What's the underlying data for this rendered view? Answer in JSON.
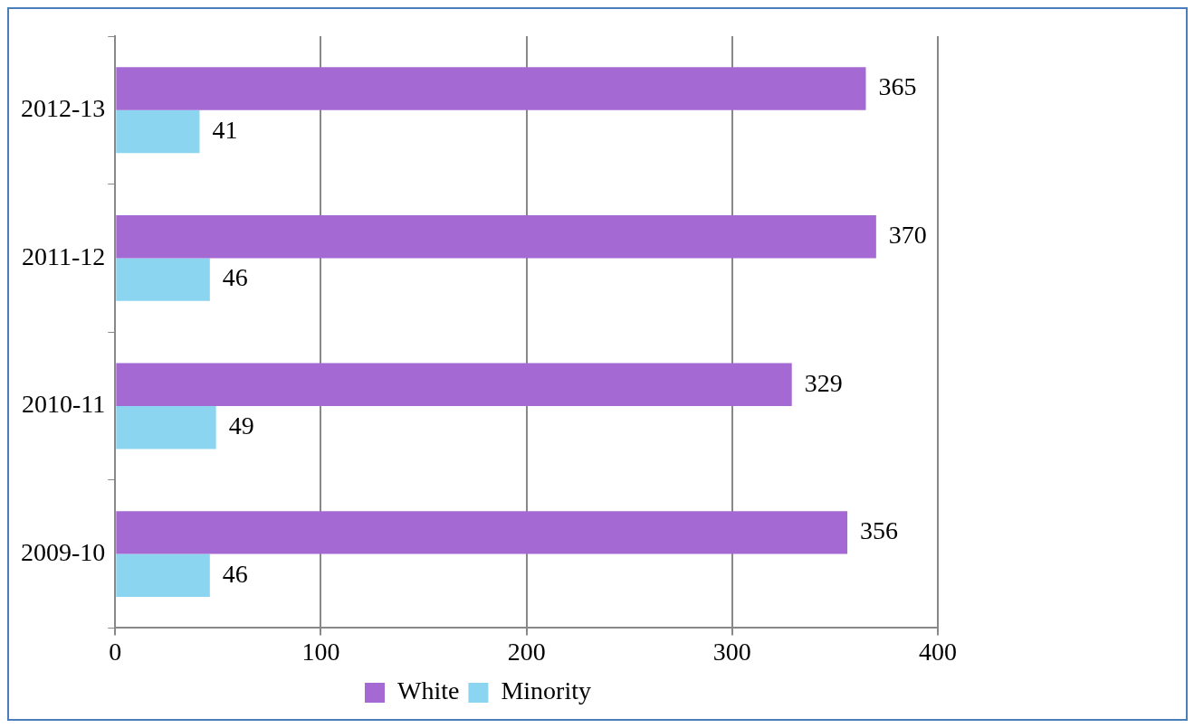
{
  "chart_data": {
    "type": "bar",
    "orientation": "horizontal",
    "categories": [
      "2012-13",
      "2011-12",
      "2010-11",
      "2009-10"
    ],
    "series": [
      {
        "name": "White",
        "color": "#a569d3",
        "values": [
          365,
          370,
          329,
          356
        ]
      },
      {
        "name": "Minority",
        "color": "#8bd5f0",
        "values": [
          41,
          46,
          49,
          46
        ]
      }
    ],
    "xlim": [
      0,
      400
    ],
    "xticks": [
      0,
      100,
      200,
      300,
      400
    ],
    "grid": "x",
    "legend": "bottom",
    "data_labels": true
  }
}
